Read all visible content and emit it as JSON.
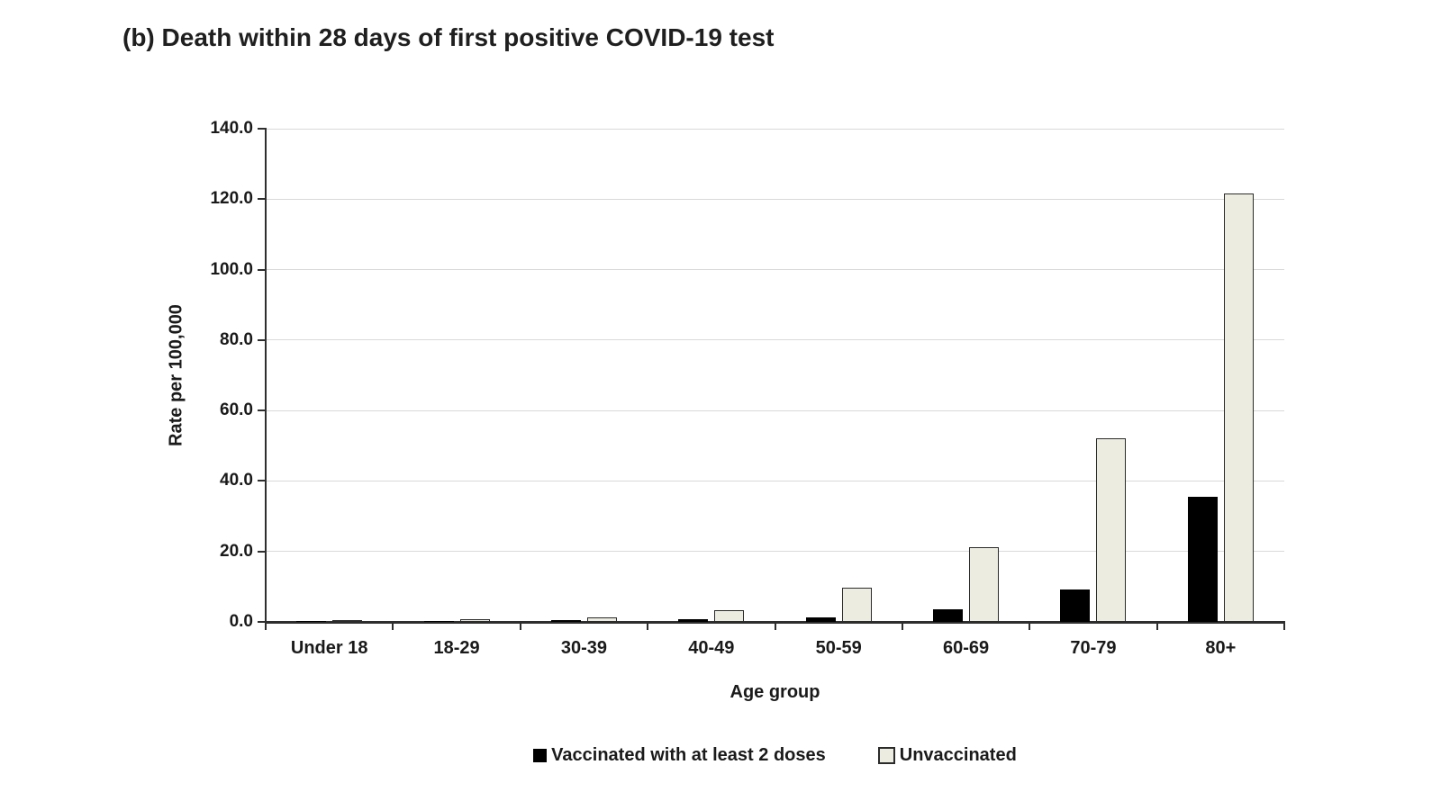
{
  "title": "(b) Death within 28 days of first positive COVID-19 test",
  "colors": {
    "background": "#ffffff",
    "text": "#1a1a1a",
    "axis": "#2e2e2e",
    "gridline": "#d9d9d9",
    "vaccinated_fill": "#000000",
    "unvaccinated_fill": "#edece1",
    "unvaccinated_border": "#2b2b2b"
  },
  "chart_data": {
    "type": "bar",
    "title": "(b) Death within 28 days of first positive COVID-19 test",
    "xlabel": "Age group",
    "ylabel": "Rate per 100,000",
    "categories": [
      "Under 18",
      "18-29",
      "30-39",
      "40-49",
      "50-59",
      "60-69",
      "70-79",
      "80+"
    ],
    "series": [
      {
        "name": "Vaccinated with at least 2 doses",
        "color": "#000000",
        "values": [
          0.0,
          0.2,
          0.4,
          0.7,
          1.3,
          3.6,
          9.2,
          35.6
        ]
      },
      {
        "name": "Unvaccinated",
        "color": "#edece1",
        "border": "#2b2b2b",
        "values": [
          0.1,
          0.8,
          1.4,
          3.2,
          9.6,
          21.3,
          52.1,
          121.6
        ]
      }
    ],
    "ylim": [
      0,
      140
    ],
    "ytick_step": 20,
    "ytick_labels": [
      "0.0",
      "20.0",
      "40.0",
      "60.0",
      "80.0",
      "100.0",
      "120.0",
      "140.0"
    ],
    "grid": true,
    "legend_position": "bottom"
  }
}
